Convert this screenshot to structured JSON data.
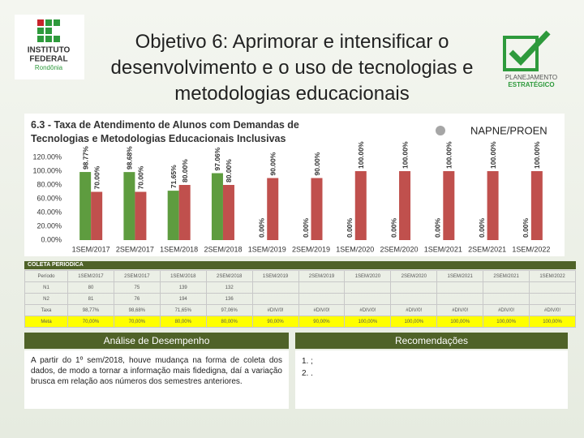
{
  "header": {
    "title": "Objetivo 6: Aprimorar e intensificar o desenvolvimento e o uso de tecnologias e metodologias educacionais",
    "logo_left": [
      "INSTITUTO",
      "FEDERAL",
      "Rondônia"
    ],
    "logo_right": [
      "PLANEJAMENTO",
      "ESTRATÉGICO"
    ]
  },
  "chart_data": {
    "type": "bar",
    "title": "6.3 - Taxa de Atendimento de Alunos com Demandas de Tecnologias e Metodologias Educacionais Inclusivas",
    "legend": {
      "label": "NAPNE/PROEN",
      "color": "#a6a6a6"
    },
    "categories": [
      "1SEM/2017",
      "2SEM/2017",
      "1SEM/2018",
      "2SEM/2018",
      "1SEM/2019",
      "2SEM/2019",
      "1SEM/2020",
      "2SEM/2020",
      "1SEM/2021",
      "2SEM/2021",
      "1SEM/2022"
    ],
    "series": [
      {
        "color": "#5e9c3f",
        "values": [
          98.77,
          98.68,
          71.65,
          97.06,
          0,
          0,
          0,
          0,
          0,
          0,
          0
        ],
        "value_labels": [
          "98.77%",
          "98.68%",
          "71.65%",
          "97.06%",
          "0.00%",
          "0.00%",
          "0.00%",
          "0.00%",
          "0.00%",
          "0.00%",
          "0.00%"
        ]
      },
      {
        "color": "#c0504d",
        "values": [
          70,
          70,
          80,
          80,
          90,
          90,
          100,
          100,
          100,
          100,
          100
        ],
        "value_labels": [
          "70.00%",
          "70.00%",
          "80.00%",
          "80.00%",
          "90.00%",
          "90.00%",
          "100.00%",
          "100.00%",
          "100.00%",
          "100.00%",
          "100.00%"
        ]
      }
    ],
    "ylim": [
      0,
      120
    ],
    "yticks": [
      {
        "value": 0,
        "label": "0.00%"
      },
      {
        "value": 20,
        "label": "20.00%"
      },
      {
        "value": 40,
        "label": "40.00%"
      },
      {
        "value": 60,
        "label": "60.00%"
      },
      {
        "value": 80,
        "label": "80.00%"
      },
      {
        "value": 100,
        "label": "100.00%"
      },
      {
        "value": 120,
        "label": "120.00%"
      }
    ]
  },
  "table": {
    "header": "COLETA PERIODICA",
    "rows": [
      [
        "Período",
        "1SEM/2017",
        "2SEM/2017",
        "1SEM/2018",
        "2SEM/2018",
        "1SEM/2019",
        "2SEM/2019",
        "1SEM/2020",
        "2SEM/2020",
        "1SEM/2021",
        "2SEM/2021",
        "1SEM/2022"
      ],
      [
        "N1",
        "80",
        "75",
        "139",
        "132",
        "",
        "",
        "",
        "",
        "",
        "",
        ""
      ],
      [
        "N2",
        "81",
        "76",
        "194",
        "136",
        "",
        "",
        "",
        "",
        "",
        "",
        ""
      ],
      [
        "Taxa",
        "98,77%",
        "98,68%",
        "71,65%",
        "97,06%",
        "#DIV/0!",
        "#DIV/0!",
        "#DIV/0!",
        "#DIV/0!",
        "#DIV/0!",
        "#DIV/0!",
        "#DIV/0!"
      ],
      [
        "Meta",
        "70,00%",
        "70,00%",
        "80,00%",
        "80,00%",
        "90,00%",
        "90,00%",
        "100,00%",
        "100,00%",
        "100,00%",
        "100,00%",
        "100,00%"
      ]
    ]
  },
  "analysis": {
    "title": "Análise de Desempenho",
    "text": "A partir do 1º sem/2018, houve mudança na forma de coleta dos dados, de modo a tornar a informação mais fidedigna, daí a variação brusca em relação aos números dos semestres anteriores."
  },
  "recommendations": {
    "title": "Recomendações",
    "items": [
      "1. ;",
      "2. ."
    ]
  }
}
